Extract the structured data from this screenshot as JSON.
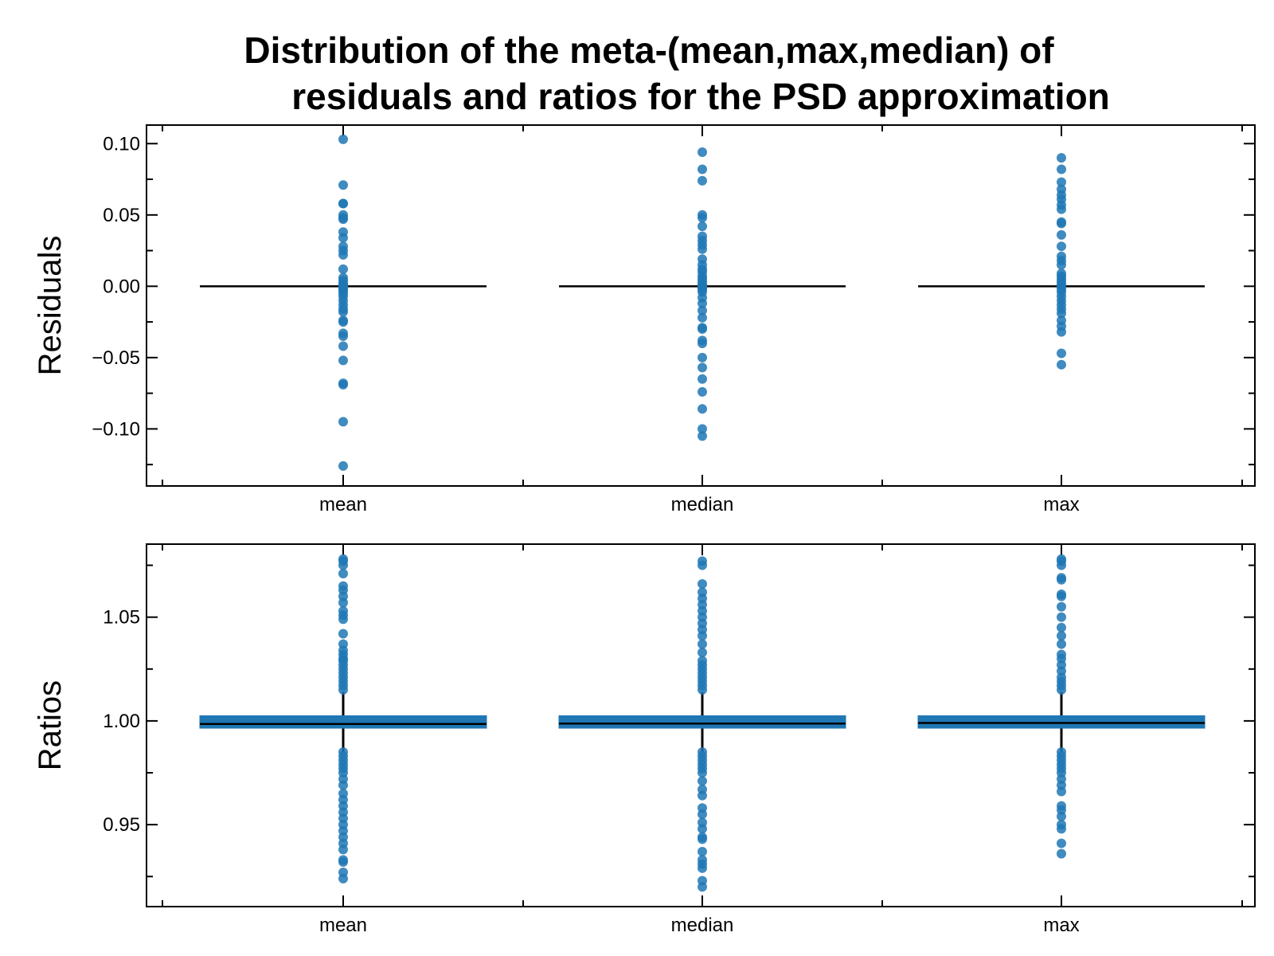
{
  "title": {
    "line1": "Distribution of the meta-(mean,max,median) of",
    "line2": "residuals and ratios for the PSD approximation"
  },
  "colors": {
    "points": "#1f77b4",
    "median_line": "#000000",
    "box_fill": "#1f77b4"
  },
  "chart_data": [
    {
      "type": "scatter",
      "panel": "top",
      "ylabel": "Residuals",
      "categories": [
        "mean",
        "median",
        "max"
      ],
      "ylim": [
        -0.14,
        0.113
      ],
      "yticks": [
        0.1,
        0.05,
        0.0,
        -0.05,
        -0.1
      ],
      "ytick_labels": [
        "0.10",
        "0.05",
        "0.00",
        "−0.05",
        "−0.10"
      ],
      "median_lines": [
        0.0,
        0.0,
        0.0
      ],
      "series": [
        {
          "category": "mean",
          "values": [
            0.103,
            0.071,
            0.058,
            0.058,
            0.05,
            0.048,
            0.047,
            0.038,
            0.034,
            0.028,
            0.025,
            0.022,
            0.012,
            0.006,
            0.004,
            0.002,
            0.001,
            0.0,
            -0.001,
            -0.002,
            -0.003,
            -0.005,
            -0.007,
            -0.01,
            -0.013,
            -0.016,
            -0.018,
            -0.024,
            -0.025,
            -0.033,
            -0.035,
            -0.042,
            -0.052,
            -0.068,
            -0.069,
            -0.095,
            -0.126
          ]
        },
        {
          "category": "median",
          "values": [
            0.094,
            0.082,
            0.074,
            0.05,
            0.048,
            0.042,
            0.035,
            0.032,
            0.029,
            0.026,
            0.019,
            0.015,
            0.012,
            0.01,
            0.007,
            0.005,
            0.003,
            0.001,
            0.0,
            -0.001,
            -0.002,
            -0.004,
            -0.008,
            -0.012,
            -0.017,
            -0.022,
            -0.029,
            -0.03,
            -0.038,
            -0.04,
            -0.05,
            -0.057,
            -0.065,
            -0.074,
            -0.086,
            -0.1,
            -0.105
          ]
        },
        {
          "category": "max",
          "values": [
            0.09,
            0.082,
            0.073,
            0.068,
            0.064,
            0.061,
            0.057,
            0.054,
            0.045,
            0.044,
            0.036,
            0.028,
            0.021,
            0.018,
            0.015,
            0.009,
            0.007,
            0.005,
            0.003,
            0.001,
            0.0,
            -0.002,
            -0.004,
            -0.007,
            -0.01,
            -0.013,
            -0.016,
            -0.019,
            -0.024,
            -0.028,
            -0.032,
            -0.047,
            -0.055
          ]
        }
      ]
    },
    {
      "type": "box",
      "panel": "bottom",
      "ylabel": "Ratios",
      "categories": [
        "mean",
        "median",
        "max"
      ],
      "ylim": [
        0.9105,
        1.0852
      ],
      "yticks": [
        1.05,
        1.0,
        0.95
      ],
      "ytick_labels": [
        "1.05",
        "1.00",
        "0.95"
      ],
      "boxes": [
        {
          "category": "mean",
          "q1": 0.9965,
          "median": 0.9985,
          "q3": 1.0025,
          "whisker_low": 0.985,
          "whisker_high": 1.014
        },
        {
          "category": "median",
          "q1": 0.9965,
          "median": 0.9987,
          "q3": 1.0025,
          "whisker_low": 0.985,
          "whisker_high": 1.014
        },
        {
          "category": "max",
          "q1": 0.9965,
          "median": 0.999,
          "q3": 1.0025,
          "whisker_low": 0.985,
          "whisker_high": 1.014
        }
      ],
      "series": [
        {
          "category": "mean",
          "values": [
            1.078,
            1.077,
            1.075,
            1.071,
            1.065,
            1.063,
            1.06,
            1.057,
            1.053,
            1.051,
            1.049,
            1.042,
            1.037,
            1.034,
            1.032,
            1.03,
            1.029,
            1.027,
            1.025,
            1.023,
            1.021,
            1.019,
            1.017,
            1.015,
            0.985,
            0.983,
            0.981,
            0.979,
            0.977,
            0.975,
            0.972,
            0.969,
            0.965,
            0.962,
            0.959,
            0.956,
            0.953,
            0.95,
            0.947,
            0.944,
            0.941,
            0.938,
            0.933,
            0.932,
            0.927,
            0.924
          ]
        },
        {
          "category": "median",
          "values": [
            1.077,
            1.075,
            1.066,
            1.062,
            1.059,
            1.056,
            1.053,
            1.05,
            1.047,
            1.044,
            1.041,
            1.037,
            1.033,
            1.029,
            1.027,
            1.025,
            1.023,
            1.021,
            1.019,
            1.017,
            1.015,
            0.985,
            0.983,
            0.981,
            0.979,
            0.977,
            0.975,
            0.971,
            0.967,
            0.964,
            0.958,
            0.955,
            0.951,
            0.948,
            0.944,
            0.943,
            0.937,
            0.933,
            0.931,
            0.929,
            0.923,
            0.92
          ]
        },
        {
          "category": "max",
          "values": [
            1.078,
            1.077,
            1.075,
            1.069,
            1.068,
            1.061,
            1.06,
            1.055,
            1.05,
            1.045,
            1.041,
            1.037,
            1.032,
            1.03,
            1.027,
            1.024,
            1.021,
            1.019,
            1.017,
            1.015,
            0.985,
            0.983,
            0.981,
            0.979,
            0.977,
            0.975,
            0.972,
            0.969,
            0.966,
            0.959,
            0.957,
            0.954,
            0.95,
            0.948,
            0.941,
            0.936
          ]
        }
      ]
    }
  ]
}
